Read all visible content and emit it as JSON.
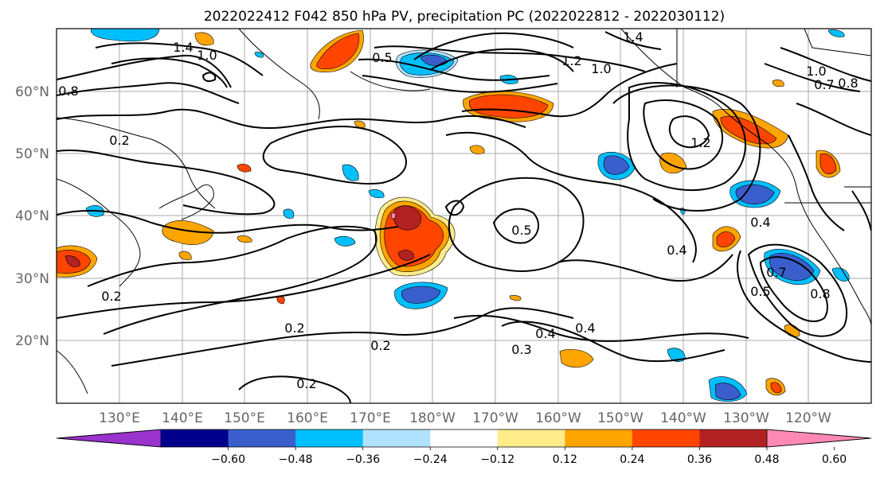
{
  "title": "2022022412 F042 850 hPa PV, precipitation PC (2022022812 - 2022030112)",
  "lat_labels": [
    "60°N",
    "50°N",
    "40°N",
    "30°N",
    "20°N"
  ],
  "lon_labels": [
    "130°E",
    "140°E",
    "150°E",
    "160°E",
    "170°E",
    "180°W",
    "170°W",
    "160°W",
    "150°W",
    "140°W",
    "130°W",
    "120°W"
  ],
  "colorbar": {
    "colors": [
      "#9a32cd",
      "#00008b",
      "#3a5fcd",
      "#00bfff",
      "#b0e2ff",
      "#ffffff",
      "#ffec8b",
      "#ffa500",
      "#ff4500",
      "#b22222",
      "#ff89b5"
    ],
    "ticks": [
      "−0.60",
      "−0.48",
      "−0.36",
      "−0.24",
      "−0.12",
      "0.12",
      "0.24",
      "0.36",
      "0.48",
      "0.60"
    ]
  },
  "contour_labels": [
    "1.4",
    "1.0",
    "0.5",
    "1.2",
    "1.0",
    "1.4",
    "0.8",
    "0.2",
    "0.5",
    "0.4",
    "0.2",
    "0.2",
    "0.2",
    "0.3",
    "0.4",
    "0.4",
    "1.2",
    "0.4",
    "0.5",
    "0.7",
    "0.8",
    "0.2",
    "1.0",
    "0.7",
    "0.8"
  ]
}
